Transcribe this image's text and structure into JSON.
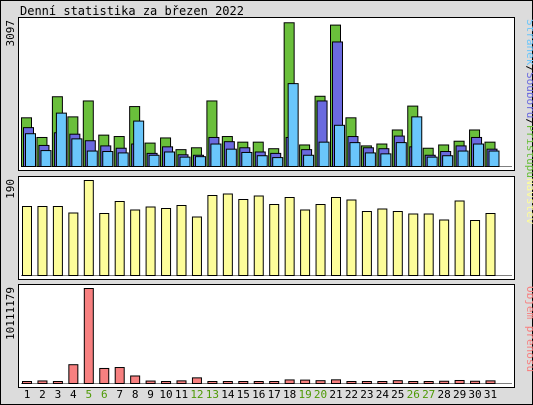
{
  "title": "Denní statistika za březen 2022",
  "colors": {
    "background": "#dcdcdc",
    "panel_fill": "#ffffff",
    "hits": "#6abf3b",
    "files": "#6a6adf",
    "pages": "#6ac6fb",
    "visits": "#fdfd9a",
    "kbytes": "#f78080",
    "weekend_label": "#4e9a06",
    "text": "#000000"
  },
  "chart_data": [
    {
      "type": "bar",
      "title": "Denní statistika za březen 2022",
      "panel": "top",
      "ymax_label": "3097",
      "ylim": [
        0,
        3097
      ],
      "legend": [
        {
          "name": "Stránek",
          "color": "#6ac6fb"
        },
        {
          "name": "/",
          "color": "#000000"
        },
        {
          "name": "Souborů",
          "color": "#6a6adf"
        },
        {
          "name": "/",
          "color": "#000000"
        },
        {
          "name": "Přístupů",
          "color": "#6abf3b"
        }
      ],
      "categories": [
        "1",
        "2",
        "3",
        "4",
        "5",
        "6",
        "7",
        "8",
        "9",
        "10",
        "11",
        "12",
        "13",
        "14",
        "15",
        "16",
        "17",
        "18",
        "19",
        "20",
        "21",
        "22",
        "23",
        "24",
        "25",
        "26",
        "27",
        "28",
        "29",
        "30",
        "31"
      ],
      "series": [
        {
          "name": "Přístupů",
          "values": [
            1040,
            620,
            1490,
            1060,
            1400,
            670,
            640,
            1280,
            500,
            610,
            360,
            400,
            1400,
            640,
            520,
            520,
            380,
            3070,
            460,
            1500,
            3020,
            1040,
            440,
            480,
            780,
            1290,
            390,
            460,
            540,
            780,
            520
          ]
        },
        {
          "name": "Souborů",
          "values": [
            830,
            450,
            720,
            690,
            550,
            440,
            390,
            480,
            280,
            420,
            250,
            240,
            620,
            530,
            400,
            310,
            280,
            620,
            360,
            1400,
            2660,
            640,
            400,
            380,
            650,
            420,
            240,
            320,
            440,
            620,
            370
          ]
        },
        {
          "name": "Stránek",
          "values": [
            700,
            340,
            1140,
            590,
            330,
            320,
            290,
            970,
            240,
            310,
            200,
            210,
            480,
            370,
            300,
            230,
            190,
            1770,
            240,
            520,
            880,
            510,
            290,
            270,
            510,
            1060,
            200,
            230,
            330,
            480,
            330
          ]
        }
      ]
    },
    {
      "type": "bar",
      "panel": "middle",
      "ymax_label": "190",
      "ylim": [
        0,
        190
      ],
      "legend": [
        {
          "name": "Návštěv",
          "color": "#fdfd9a"
        }
      ],
      "series": [
        {
          "name": "Návštěv",
          "values": [
            138,
            138,
            138,
            125,
            190,
            124,
            148,
            131,
            137,
            134,
            140,
            117,
            160,
            163,
            152,
            159,
            142,
            156,
            131,
            142,
            156,
            151,
            128,
            133,
            128,
            123,
            123,
            111,
            149,
            110,
            124
          ]
        }
      ]
    },
    {
      "type": "bar",
      "panel": "bottom",
      "ymax_label": "10111179",
      "ylim": [
        0,
        10111179
      ],
      "legend": [
        {
          "name": "Objem přenosu",
          "color": "#f78080"
        }
      ],
      "series": [
        {
          "name": "Objem přenosu",
          "values": [
            60000,
            270000,
            90000,
            2000000,
            10111179,
            1600000,
            1700000,
            800000,
            260000,
            150000,
            280000,
            600000,
            80000,
            80000,
            70000,
            80000,
            90000,
            380000,
            360000,
            300000,
            390000,
            180000,
            190000,
            190000,
            300000,
            200000,
            200000,
            240000,
            320000,
            240000,
            280000
          ]
        }
      ]
    }
  ],
  "weekend_days": [
    5,
    6,
    12,
    13,
    19,
    20,
    26,
    27
  ]
}
